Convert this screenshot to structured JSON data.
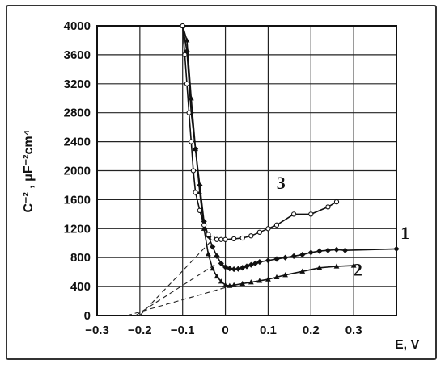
{
  "chart_data": {
    "type": "line",
    "xlabel": "E, V",
    "ylabel": "C⁻² , μF⁻²cm⁴",
    "xlim": [
      -0.3,
      0.4
    ],
    "ylim": [
      0,
      4000
    ],
    "x_ticks": [
      -0.3,
      -0.2,
      -0.1,
      0,
      0.1,
      0.2,
      0.3
    ],
    "x_tick_labels": [
      "−0.3",
      "−0.2",
      "−0.1",
      "0",
      "0.1",
      "0.2",
      "0.3"
    ],
    "y_ticks": [
      0,
      400,
      800,
      1200,
      1600,
      2000,
      2400,
      2800,
      3200,
      3600,
      4000
    ],
    "y_tick_labels": [
      "0",
      "400",
      "800",
      "1200",
      "1600",
      "2000",
      "2400",
      "2800",
      "3200",
      "3600",
      "4000"
    ],
    "grid": true,
    "series": [
      {
        "name": "1",
        "marker": "diamond-filled",
        "x": [
          -0.1,
          -0.09,
          -0.08,
          -0.07,
          -0.06,
          -0.05,
          -0.04,
          -0.03,
          -0.02,
          -0.01,
          0.0,
          0.01,
          0.02,
          0.03,
          0.04,
          0.05,
          0.06,
          0.07,
          0.08,
          0.1,
          0.12,
          0.14,
          0.16,
          0.18,
          0.2,
          0.22,
          0.24,
          0.26,
          0.28,
          0.4
        ],
        "y": [
          4000,
          3650,
          2800,
          2300,
          1800,
          1300,
          1100,
          950,
          820,
          720,
          670,
          650,
          640,
          645,
          660,
          680,
          700,
          720,
          740,
          760,
          780,
          800,
          820,
          840,
          870,
          890,
          900,
          910,
          900,
          920
        ]
      },
      {
        "name": "2",
        "marker": "triangle-filled",
        "x": [
          -0.1,
          -0.09,
          -0.08,
          -0.07,
          -0.06,
          -0.05,
          -0.04,
          -0.03,
          -0.02,
          -0.01,
          0.0,
          0.01,
          0.02,
          0.04,
          0.06,
          0.08,
          0.1,
          0.12,
          0.14,
          0.18,
          0.22,
          0.26,
          0.3
        ],
        "y": [
          4000,
          3800,
          3000,
          2300,
          1700,
          1200,
          850,
          650,
          540,
          470,
          420,
          410,
          420,
          440,
          460,
          480,
          500,
          530,
          560,
          610,
          660,
          680,
          690
        ]
      },
      {
        "name": "3",
        "marker": "circle-open",
        "x": [
          -0.1,
          -0.095,
          -0.09,
          -0.085,
          -0.08,
          -0.075,
          -0.07,
          -0.06,
          -0.05,
          -0.04,
          -0.03,
          -0.02,
          -0.01,
          0.0,
          0.02,
          0.04,
          0.06,
          0.08,
          0.1,
          0.12,
          0.16,
          0.2,
          0.24,
          0.26
        ],
        "y": [
          4000,
          3600,
          3200,
          2800,
          2400,
          2000,
          1700,
          1450,
          1250,
          1120,
          1070,
          1050,
          1050,
          1050,
          1060,
          1070,
          1100,
          1150,
          1200,
          1250,
          1400,
          1400,
          1500,
          1570
        ]
      }
    ],
    "extrapolations": [
      {
        "series": "1",
        "from": [
          -0.21,
          0
        ],
        "to": [
          -0.02,
          720
        ]
      },
      {
        "series": "2",
        "from": [
          -0.23,
          0
        ],
        "to": [
          0.02,
          420
        ]
      },
      {
        "series": "3",
        "from": [
          -0.2,
          0
        ],
        "to": [
          -0.03,
          1050
        ]
      }
    ],
    "curve_labels": [
      {
        "text": "1",
        "x": 0.42,
        "y": 1060
      },
      {
        "text": "2",
        "x": 0.31,
        "y": 550
      },
      {
        "text": "3",
        "x": 0.13,
        "y": 1750
      }
    ]
  }
}
